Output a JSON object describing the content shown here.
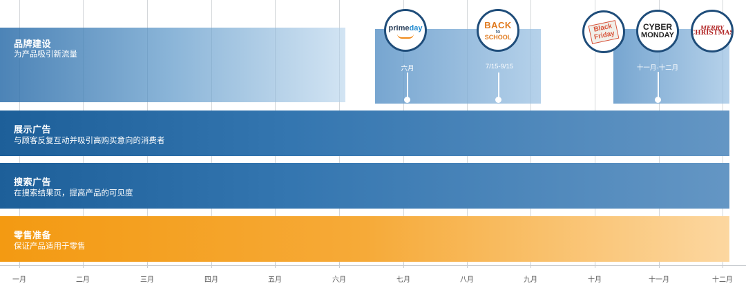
{
  "months": [
    "一月",
    "二月",
    "三月",
    "四月",
    "五月",
    "六月",
    "七月",
    "八月",
    "九月",
    "十月",
    "十一月",
    "十二月"
  ],
  "bands": {
    "brand": {
      "title": "品牌建设",
      "subtitle": "为产品吸引新流量"
    },
    "display": {
      "title": "展示广告",
      "subtitle": "与顾客反复互动并吸引高购买意向的消费者"
    },
    "search": {
      "title": "搜索广告",
      "subtitle": "在搜索结果页，提高产品的可见度"
    },
    "retail": {
      "title": "零售准备",
      "subtitle": "保证产品适用于零售"
    }
  },
  "events": {
    "primeday": {
      "logo_a": "prime",
      "logo_b": "day",
      "period": "六月"
    },
    "back_to_school": {
      "logo_a": "BACK",
      "logo_b": "to",
      "logo_c": "SCHOOL",
      "period": "7/15-9/15"
    },
    "holiday": {
      "period": "十一月-十二月"
    },
    "black_friday": {
      "logo_a": "Black",
      "logo_b": "Friday"
    },
    "cyber_monday": {
      "logo_a": "CYBER",
      "logo_b": "MONDAY"
    },
    "christmas": {
      "logo_a": "MERRY",
      "logo_b": "CHRISTMAS"
    }
  },
  "colors": {
    "blue_dark": "#1d5f99",
    "orange": "#f39a12",
    "badge_border": "#1f4d7a"
  }
}
